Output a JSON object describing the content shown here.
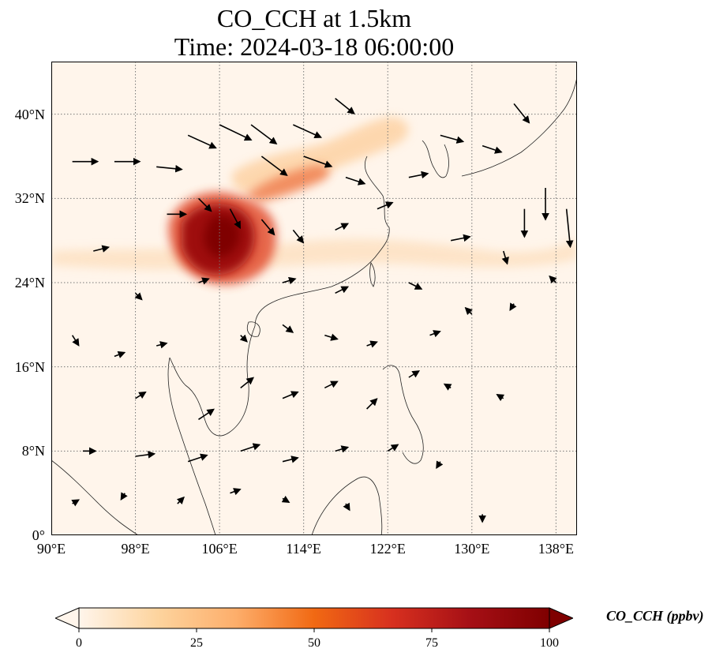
{
  "title": {
    "line1": "CO_CCH at 1.5km",
    "line2": "Time: 2024-03-18 06:00:00"
  },
  "map": {
    "projection": "PlateCarree",
    "extent": {
      "lon_min": 90,
      "lon_max": 140,
      "lat_min": 0,
      "lat_max": 45
    },
    "gridlines": "dotted gray",
    "lat_ticks": [
      {
        "value": 40,
        "label": "40°N"
      },
      {
        "value": 32,
        "label": "32°N"
      },
      {
        "value": 24,
        "label": "24°N"
      },
      {
        "value": 16,
        "label": "16°N"
      },
      {
        "value": 8,
        "label": "8°N"
      },
      {
        "value": 0,
        "label": "0°"
      }
    ],
    "lon_ticks": [
      {
        "value": 90,
        "label": "90°E"
      },
      {
        "value": 98,
        "label": "98°E"
      },
      {
        "value": 106,
        "label": "106°E"
      },
      {
        "value": 114,
        "label": "114°E"
      },
      {
        "value": 122,
        "label": "122°E"
      },
      {
        "value": 130,
        "label": "130°E"
      },
      {
        "value": 138,
        "label": "138°E"
      }
    ],
    "background_color": "#fff5eb",
    "plume_colors": [
      "#fde0c0",
      "#fdae6b",
      "#e4583a",
      "#b3060c",
      "#7f0000"
    ],
    "concentration_features": [
      {
        "name": "sichuan-core",
        "lon": 106.5,
        "lat": 28.0,
        "value": 100
      },
      {
        "name": "chongqing-core",
        "lon": 108.0,
        "lat": 28.3,
        "value": 100
      },
      {
        "name": "guizhou-core",
        "lon": 105.0,
        "lat": 25.5,
        "value": 95
      },
      {
        "name": "hubei-band",
        "lon": 111.0,
        "lat": 33.0,
        "value": 70
      },
      {
        "name": "henan-band",
        "lon": 110.0,
        "lat": 34.5,
        "value": 60
      },
      {
        "name": "north-china-band",
        "lon": 115.0,
        "lat": 37.5,
        "value": 30
      },
      {
        "name": "bohai-band",
        "lon": 118.0,
        "lat": 38.0,
        "value": 20
      },
      {
        "name": "pacific-band",
        "lon": 128.0,
        "lat": 26.5,
        "value": 15
      }
    ],
    "wind_vectors": [
      {
        "lon": 92,
        "lat": 35.5,
        "u": 2.0,
        "v": 0.0
      },
      {
        "lon": 96,
        "lat": 35.5,
        "u": 2.0,
        "v": 0.0
      },
      {
        "lon": 100,
        "lat": 35.0,
        "u": 2.0,
        "v": -0.2
      },
      {
        "lon": 103,
        "lat": 38.0,
        "u": 2.2,
        "v": -1.0
      },
      {
        "lon": 106,
        "lat": 39.0,
        "u": 2.5,
        "v": -1.2
      },
      {
        "lon": 109,
        "lat": 39.0,
        "u": 2.0,
        "v": -1.5
      },
      {
        "lon": 113,
        "lat": 39.0,
        "u": 2.2,
        "v": -1.0
      },
      {
        "lon": 117,
        "lat": 41.5,
        "u": 1.5,
        "v": -1.2
      },
      {
        "lon": 110,
        "lat": 36.0,
        "u": 2.0,
        "v": -1.5
      },
      {
        "lon": 114,
        "lat": 36.0,
        "u": 2.2,
        "v": -0.8
      },
      {
        "lon": 118,
        "lat": 34.0,
        "u": 1.5,
        "v": -0.5
      },
      {
        "lon": 101,
        "lat": 30.5,
        "u": 1.5,
        "v": 0.0
      },
      {
        "lon": 104,
        "lat": 32.0,
        "u": 1.0,
        "v": -1.0
      },
      {
        "lon": 107,
        "lat": 31.0,
        "u": 0.8,
        "v": -1.5
      },
      {
        "lon": 110,
        "lat": 30.0,
        "u": 1.0,
        "v": -1.2
      },
      {
        "lon": 113,
        "lat": 29.0,
        "u": 0.8,
        "v": -1.0
      },
      {
        "lon": 117,
        "lat": 29.0,
        "u": 1.0,
        "v": 0.5
      },
      {
        "lon": 121,
        "lat": 31.0,
        "u": 1.2,
        "v": 0.5
      },
      {
        "lon": 124,
        "lat": 34.0,
        "u": 1.5,
        "v": 0.3
      },
      {
        "lon": 127,
        "lat": 38.0,
        "u": 1.8,
        "v": -0.5
      },
      {
        "lon": 131,
        "lat": 37.0,
        "u": 1.5,
        "v": -0.5
      },
      {
        "lon": 134,
        "lat": 41.0,
        "u": 1.2,
        "v": -1.5
      },
      {
        "lon": 137,
        "lat": 33.0,
        "u": 0.0,
        "v": -2.5
      },
      {
        "lon": 135,
        "lat": 31.0,
        "u": 0.0,
        "v": -2.2
      },
      {
        "lon": 139,
        "lat": 31.0,
        "u": 0.3,
        "v": -3.0
      },
      {
        "lon": 133,
        "lat": 27.0,
        "u": 0.3,
        "v": -1.0
      },
      {
        "lon": 128,
        "lat": 28.0,
        "u": 1.5,
        "v": 0.3
      },
      {
        "lon": 124,
        "lat": 24.0,
        "u": 1.0,
        "v": -0.5
      },
      {
        "lon": 117,
        "lat": 23.0,
        "u": 1.0,
        "v": 0.5
      },
      {
        "lon": 112,
        "lat": 24.0,
        "u": 1.0,
        "v": 0.3
      },
      {
        "lon": 104,
        "lat": 24.0,
        "u": 0.8,
        "v": 0.3
      },
      {
        "lon": 98,
        "lat": 23.0,
        "u": 0.5,
        "v": -0.5
      },
      {
        "lon": 94,
        "lat": 27.0,
        "u": 1.2,
        "v": 0.3
      },
      {
        "lon": 92,
        "lat": 19.0,
        "u": 0.5,
        "v": -0.8
      },
      {
        "lon": 96,
        "lat": 17.0,
        "u": 0.8,
        "v": 0.3
      },
      {
        "lon": 100,
        "lat": 18.0,
        "u": 0.8,
        "v": 0.2
      },
      {
        "lon": 108,
        "lat": 19.0,
        "u": 0.5,
        "v": -0.5
      },
      {
        "lon": 112,
        "lat": 20.0,
        "u": 0.8,
        "v": -0.6
      },
      {
        "lon": 116,
        "lat": 19.0,
        "u": 1.0,
        "v": -0.3
      },
      {
        "lon": 120,
        "lat": 18.0,
        "u": 0.8,
        "v": 0.3
      },
      {
        "lon": 126,
        "lat": 19.0,
        "u": 0.8,
        "v": 0.3
      },
      {
        "lon": 130,
        "lat": 21.0,
        "u": -0.5,
        "v": 0.5
      },
      {
        "lon": 134,
        "lat": 22.0,
        "u": -0.3,
        "v": -0.5
      },
      {
        "lon": 138,
        "lat": 24.0,
        "u": -0.5,
        "v": 0.5
      },
      {
        "lon": 98,
        "lat": 13.0,
        "u": 0.8,
        "v": 0.5
      },
      {
        "lon": 104,
        "lat": 11.0,
        "u": 1.2,
        "v": 0.8
      },
      {
        "lon": 108,
        "lat": 14.0,
        "u": 1.0,
        "v": 0.8
      },
      {
        "lon": 112,
        "lat": 13.0,
        "u": 1.2,
        "v": 0.5
      },
      {
        "lon": 116,
        "lat": 14.0,
        "u": 1.0,
        "v": 0.5
      },
      {
        "lon": 120,
        "lat": 12.0,
        "u": 0.8,
        "v": 0.8
      },
      {
        "lon": 124,
        "lat": 15.0,
        "u": 0.8,
        "v": 0.5
      },
      {
        "lon": 128,
        "lat": 14.0,
        "u": -0.5,
        "v": 0.3
      },
      {
        "lon": 133,
        "lat": 13.0,
        "u": -0.5,
        "v": 0.3
      },
      {
        "lon": 93,
        "lat": 8.0,
        "u": 1.0,
        "v": 0.0
      },
      {
        "lon": 98,
        "lat": 7.5,
        "u": 1.5,
        "v": 0.2
      },
      {
        "lon": 103,
        "lat": 7.0,
        "u": 1.5,
        "v": 0.5
      },
      {
        "lon": 108,
        "lat": 8.0,
        "u": 1.5,
        "v": 0.5
      },
      {
        "lon": 112,
        "lat": 7.0,
        "u": 1.2,
        "v": 0.3
      },
      {
        "lon": 117,
        "lat": 8.0,
        "u": 1.0,
        "v": 0.3
      },
      {
        "lon": 122,
        "lat": 8.0,
        "u": 0.8,
        "v": 0.5
      },
      {
        "lon": 127,
        "lat": 7.0,
        "u": -0.3,
        "v": -0.5
      },
      {
        "lon": 92,
        "lat": 3.0,
        "u": 0.5,
        "v": 0.3
      },
      {
        "lon": 97,
        "lat": 4.0,
        "u": -0.3,
        "v": -0.5
      },
      {
        "lon": 102,
        "lat": 3.0,
        "u": 0.5,
        "v": 0.5
      },
      {
        "lon": 107,
        "lat": 4.0,
        "u": 0.8,
        "v": 0.3
      },
      {
        "lon": 112,
        "lat": 3.5,
        "u": 0.5,
        "v": -0.3
      },
      {
        "lon": 118,
        "lat": 3.0,
        "u": 0.3,
        "v": -0.5
      },
      {
        "lon": 131,
        "lat": 2.0,
        "u": 0.0,
        "v": -0.6
      }
    ]
  },
  "colorbar": {
    "label": "CO_CCH (ppbv)",
    "cmap": "OrRd",
    "vmin": 0,
    "vmax": 100,
    "extend": "both",
    "ticks": [
      {
        "value": 0,
        "label": "0"
      },
      {
        "value": 25,
        "label": "25"
      },
      {
        "value": 50,
        "label": "50"
      },
      {
        "value": 75,
        "label": "75"
      },
      {
        "value": 100,
        "label": "100"
      }
    ],
    "gradient_colors": [
      "#fff5eb",
      "#fdd49e",
      "#fdae6b",
      "#f16913",
      "#d7301f",
      "#a50f15",
      "#7f0000"
    ]
  }
}
